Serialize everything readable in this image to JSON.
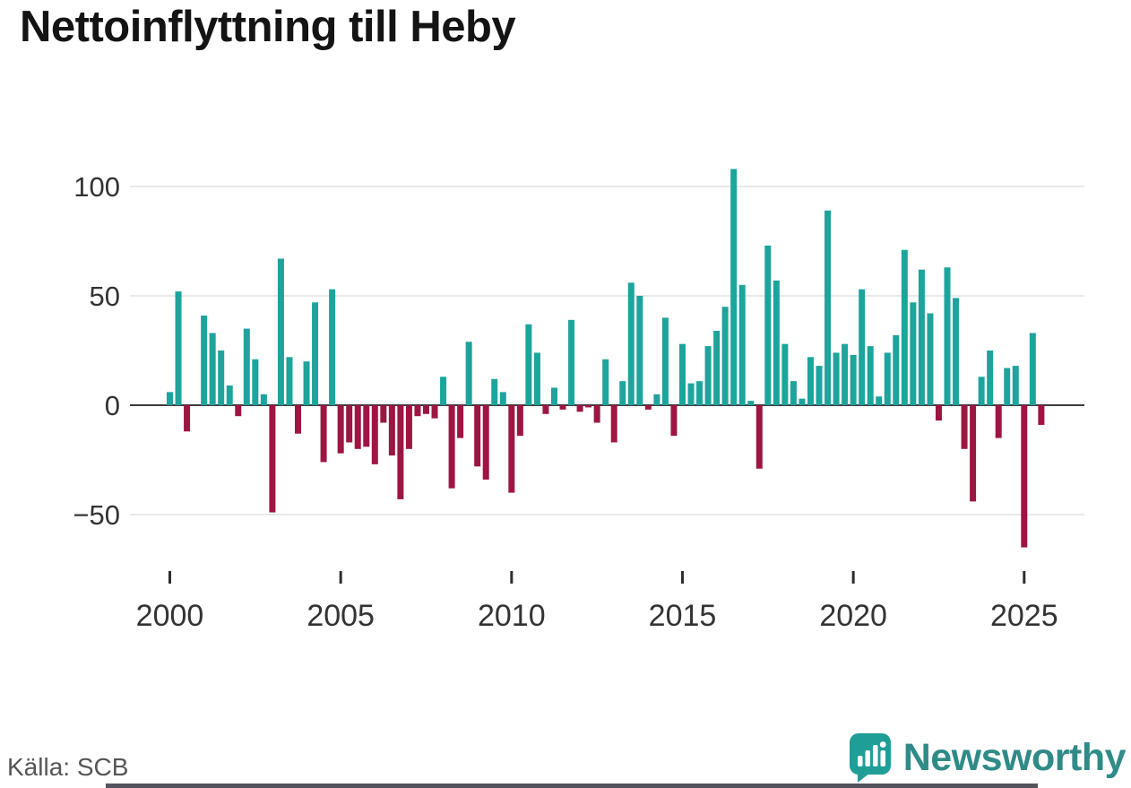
{
  "header": {
    "title": "Nettoinflyttning till Heby"
  },
  "footer": {
    "source": "Källa: SCB",
    "brand": "Newsworthy",
    "brand_color": "#2f8b87",
    "brand_icon_color": "#1f9e98"
  },
  "chart_data": {
    "type": "bar",
    "title": "Nettoinflyttning till Heby",
    "frequency": "quarterly",
    "start_year": 2000,
    "ylim": [
      -70,
      110
    ],
    "y_ticks": [
      100,
      50,
      0,
      -50
    ],
    "y_tick_labels": [
      "100",
      "50",
      "0",
      "−50"
    ],
    "x_ticks": [
      2000,
      2005,
      2010,
      2015,
      2020,
      2025
    ],
    "x_tick_labels": [
      "2000",
      "2005",
      "2010",
      "2015",
      "2020",
      "2025"
    ],
    "positive_color": "#1da49c",
    "negative_color": "#9e1542",
    "grid_color": "#e3e3e3",
    "axis_color": "#3c3c3c",
    "legend": "none",
    "years": [
      {
        "year": 2000,
        "values": [
          6,
          52,
          -12,
          0
        ]
      },
      {
        "year": 2001,
        "values": [
          41,
          33,
          25,
          9
        ]
      },
      {
        "year": 2002,
        "values": [
          -5,
          35,
          21,
          5
        ]
      },
      {
        "year": 2003,
        "values": [
          -49,
          67,
          22,
          -13
        ]
      },
      {
        "year": 2004,
        "values": [
          20,
          47,
          -26,
          53
        ]
      },
      {
        "year": 2005,
        "values": [
          -22,
          -17,
          -20,
          -19
        ]
      },
      {
        "year": 2006,
        "values": [
          -27,
          -8,
          -23,
          -43
        ]
      },
      {
        "year": 2007,
        "values": [
          -20,
          -5,
          -4,
          -6
        ]
      },
      {
        "year": 2008,
        "values": [
          13,
          -38,
          -15,
          29
        ]
      },
      {
        "year": 2009,
        "values": [
          -28,
          -34,
          12,
          6
        ]
      },
      {
        "year": 2010,
        "values": [
          -40,
          -14,
          37,
          24
        ]
      },
      {
        "year": 2011,
        "values": [
          -4,
          8,
          -2,
          39
        ]
      },
      {
        "year": 2012,
        "values": [
          -3,
          -1,
          -8,
          21
        ]
      },
      {
        "year": 2013,
        "values": [
          -17,
          11,
          56,
          50
        ]
      },
      {
        "year": 2014,
        "values": [
          -2,
          5,
          40,
          -14
        ]
      },
      {
        "year": 2015,
        "values": [
          28,
          10,
          11,
          27
        ]
      },
      {
        "year": 2016,
        "values": [
          34,
          45,
          108,
          55
        ]
      },
      {
        "year": 2017,
        "values": [
          2,
          -29,
          73,
          57
        ]
      },
      {
        "year": 2018,
        "values": [
          28,
          11,
          3,
          22
        ]
      },
      {
        "year": 2019,
        "values": [
          18,
          89,
          24,
          28
        ]
      },
      {
        "year": 2020,
        "values": [
          23,
          53,
          27,
          4
        ]
      },
      {
        "year": 2021,
        "values": [
          24,
          32,
          71,
          47
        ]
      },
      {
        "year": 2022,
        "values": [
          62,
          42,
          -7,
          63
        ]
      },
      {
        "year": 2023,
        "values": [
          49,
          -20,
          -44,
          13
        ]
      },
      {
        "year": 2024,
        "values": [
          25,
          -15,
          17,
          18
        ]
      },
      {
        "year": 2025,
        "values": [
          -65,
          33,
          -9
        ]
      }
    ]
  }
}
